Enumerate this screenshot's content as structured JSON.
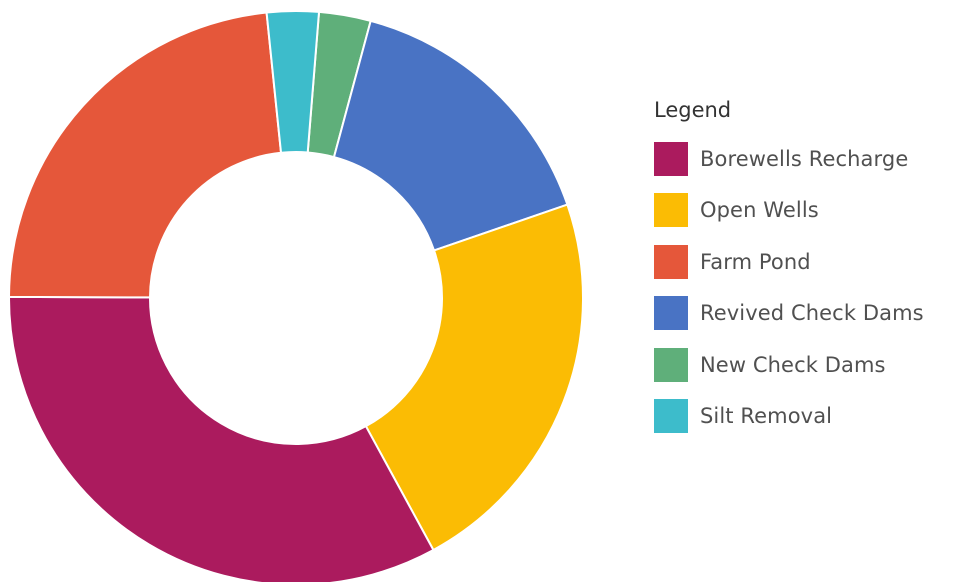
{
  "chart_data": {
    "type": "pie",
    "donut": true,
    "legend_title": "Legend",
    "legend_position": "right",
    "series": [
      {
        "name": "Borewells Recharge",
        "value": 34,
        "color": "#AB1B5E"
      },
      {
        "name": "Open Wells",
        "value": 23,
        "color": "#FBBC04"
      },
      {
        "name": "Farm Pond",
        "value": 24,
        "color": "#E5573A"
      },
      {
        "name": "Revived Check Dams",
        "value": 16,
        "color": "#4973C4"
      },
      {
        "name": "New Check Dams",
        "value": 3,
        "color": "#5FAF7A"
      },
      {
        "name": "Silt Removal",
        "value": 3,
        "color": "#3DBCCB"
      }
    ]
  }
}
